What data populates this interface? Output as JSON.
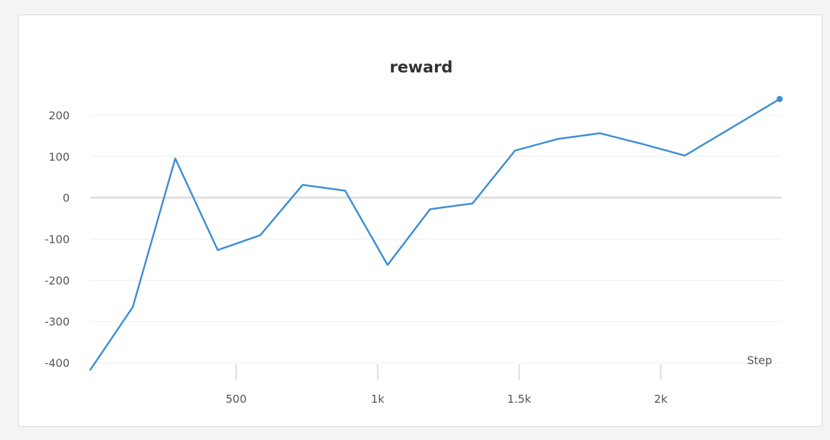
{
  "chart_data": {
    "type": "line",
    "title": "reward",
    "xlabel": "Step",
    "ylabel": "",
    "xlim": [
      -15,
      2425
    ],
    "ylim": [
      -420,
      265
    ],
    "x_ticks": [
      {
        "value": 500,
        "label": "500"
      },
      {
        "value": 1000,
        "label": "1k"
      },
      {
        "value": 1500,
        "label": "1.5k"
      },
      {
        "value": 2000,
        "label": "2k"
      }
    ],
    "y_ticks": [
      {
        "value": 200,
        "label": "200"
      },
      {
        "value": 100,
        "label": "100"
      },
      {
        "value": 0,
        "label": "0"
      },
      {
        "value": -100,
        "label": "-100"
      },
      {
        "value": -200,
        "label": "-200"
      },
      {
        "value": -300,
        "label": "-300"
      },
      {
        "value": -400,
        "label": "-400"
      }
    ],
    "grid": true,
    "series": [
      {
        "color": "#3d8ed6",
        "x": [
          -15,
          135,
          285,
          435,
          585,
          735,
          885,
          1035,
          1185,
          1335,
          1485,
          1635,
          1785,
          1935,
          2085,
          2420
        ],
        "y": [
          -417,
          -265,
          95,
          -127,
          -91,
          31,
          17,
          -163,
          -28,
          -14,
          114,
          142,
          156,
          130,
          102,
          239
        ]
      }
    ]
  }
}
